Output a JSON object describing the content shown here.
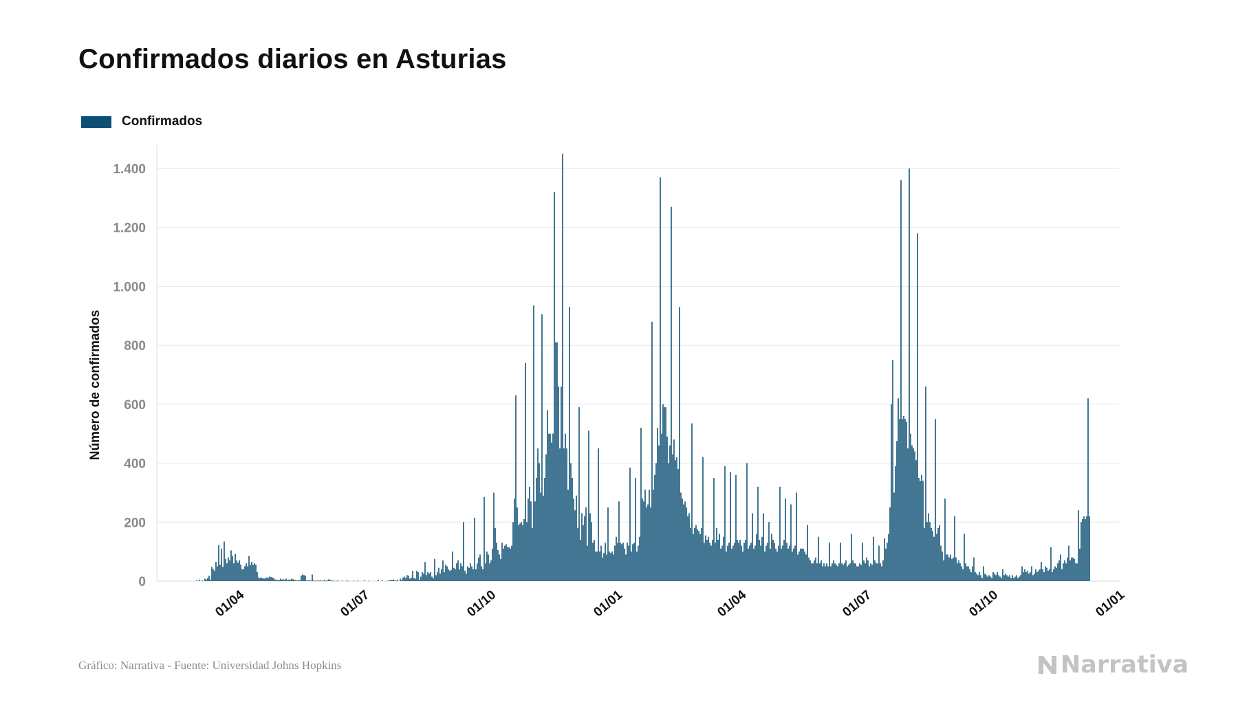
{
  "title": "Confirmados diarios en Asturias",
  "footer": {
    "source": "Gráfico: Narrativa - Fuente: Universidad Johns Hopkins",
    "logo_text": "Narrativa",
    "logo_icon": "narrativa-n-icon"
  },
  "colors": {
    "bar": "#0d5075",
    "grid": "#e6e6e6",
    "tick_y": "#8a8a8a",
    "text": "#111111"
  },
  "chart_data": {
    "type": "bar",
    "title": "Confirmados diarios en Asturias",
    "xlabel": "",
    "ylabel": "Número de confirmados",
    "legend": {
      "placement": "top-left",
      "entries": [
        "Confirmados"
      ]
    },
    "grid": true,
    "ylim": [
      0,
      1470
    ],
    "yticks": [
      0,
      200,
      400,
      600,
      800,
      1000,
      1200,
      1400
    ],
    "ytick_labels": [
      "0",
      "200",
      "400",
      "600",
      "800",
      "1.000",
      "1.200",
      "1.400"
    ],
    "xlim": [
      "2020-02-01",
      "2022-01-01"
    ],
    "xticks": [
      "2020-04-01",
      "2020-07-01",
      "2020-10-01",
      "2021-01-01",
      "2021-04-01",
      "2021-07-01",
      "2021-10-01",
      "2022-01-01"
    ],
    "xtick_labels": [
      "01/04",
      "01/07",
      "01/10",
      "01/01",
      "01/04",
      "01/07",
      "01/10",
      "01/01"
    ],
    "series": [
      {
        "name": "Confirmados",
        "color": "#0d5075",
        "start_date": "2020-03-01",
        "values": [
          2,
          0,
          4,
          0,
          2,
          0,
          8,
          5,
          10,
          18,
          5,
          48,
          40,
          35,
          65,
          50,
          122,
          55,
          110,
          48,
          134,
          75,
          60,
          80,
          70,
          104,
          85,
          60,
          92,
          70,
          62,
          70,
          56,
          40,
          40,
          50,
          60,
          50,
          85,
          55,
          65,
          55,
          60,
          55,
          30,
          12,
          10,
          12,
          10,
          8,
          10,
          12,
          10,
          15,
          14,
          12,
          10,
          5,
          4,
          3,
          4,
          8,
          5,
          6,
          4,
          8,
          3,
          5,
          4,
          8,
          6,
          4,
          3,
          2,
          2,
          3,
          18,
          22,
          20,
          18,
          2,
          2,
          3,
          1,
          22,
          2,
          1,
          1,
          2,
          1,
          2,
          1,
          1,
          4,
          1,
          2,
          6,
          3,
          2,
          1,
          1,
          0,
          1,
          1,
          0,
          0,
          1,
          0,
          0,
          1,
          1,
          0,
          0,
          0,
          1,
          0,
          0,
          1,
          0,
          0,
          0,
          0,
          2,
          0,
          0,
          1,
          0,
          0,
          0,
          0,
          0,
          0,
          4,
          0,
          0,
          2,
          0,
          0,
          0,
          1,
          2,
          4,
          3,
          5,
          2,
          1,
          4,
          0,
          8,
          3,
          12,
          15,
          10,
          20,
          18,
          8,
          12,
          35,
          10,
          8,
          35,
          30,
          5,
          15,
          30,
          25,
          65,
          20,
          30,
          25,
          30,
          15,
          10,
          75,
          20,
          30,
          45,
          25,
          40,
          70,
          30,
          55,
          50,
          40,
          35,
          38,
          100,
          45,
          40,
          60,
          70,
          40,
          60,
          50,
          200,
          35,
          25,
          50,
          45,
          60,
          50,
          40,
          215,
          40,
          60,
          80,
          90,
          50,
          40,
          285,
          60,
          100,
          90,
          60,
          70,
          110,
          300,
          180,
          130,
          105,
          90,
          75,
          130,
          110,
          120,
          125,
          115,
          115,
          110,
          120,
          200,
          280,
          630,
          250,
          190,
          195,
          200,
          190,
          210,
          740,
          200,
          280,
          320,
          270,
          180,
          935,
          270,
          350,
          450,
          400,
          300,
          905,
          290,
          350,
          430,
          580,
          500,
          500,
          470,
          500,
          1320,
          810,
          810,
          660,
          450,
          660,
          1450,
          450,
          500,
          450,
          310,
          930,
          400,
          350,
          280,
          240,
          290,
          180,
          590,
          140,
          230,
          190,
          220,
          250,
          120,
          510,
          230,
          200,
          130,
          140,
          100,
          100,
          450,
          100,
          120,
          80,
          95,
          130,
          90,
          250,
          100,
          95,
          100,
          90,
          120,
          150,
          130,
          270,
          130,
          125,
          130,
          110,
          90,
          130,
          120,
          385,
          100,
          125,
          130,
          350,
          100,
          120,
          150,
          520,
          280,
          270,
          310,
          250,
          260,
          310,
          250,
          880,
          310,
          360,
          400,
          520,
          460,
          1370,
          500,
          600,
          590,
          590,
          490,
          400,
          460,
          1270,
          430,
          480,
          410,
          420,
          380,
          930,
          300,
          280,
          260,
          270,
          250,
          220,
          230,
          180,
          535,
          160,
          180,
          190,
          175,
          170,
          160,
          180,
          420,
          130,
          155,
          140,
          150,
          130,
          120,
          140,
          350,
          130,
          180,
          140,
          160,
          110,
          120,
          150,
          390,
          100,
          120,
          130,
          370,
          110,
          120,
          130,
          360,
          140,
          130,
          140,
          120,
          100,
          130,
          140,
          400,
          110,
          120,
          130,
          230,
          110,
          120,
          160,
          320,
          140,
          120,
          150,
          230,
          100,
          120,
          130,
          200,
          110,
          160,
          140,
          130,
          110,
          100,
          120,
          320,
          110,
          120,
          140,
          280,
          130,
          110,
          120,
          260,
          100,
          110,
          120,
          300,
          90,
          100,
          110,
          110,
          110,
          100,
          90,
          190,
          80,
          70,
          60,
          60,
          70,
          80,
          60,
          150,
          60,
          70,
          50,
          60,
          50,
          60,
          50,
          130,
          50,
          60,
          70,
          60,
          55,
          50,
          60,
          130,
          60,
          55,
          60,
          70,
          50,
          55,
          60,
          160,
          70,
          60,
          60,
          50,
          50,
          60,
          55,
          130,
          70,
          60,
          80,
          70,
          50,
          60,
          55,
          150,
          70,
          60,
          60,
          120,
          60,
          50,
          70,
          145,
          110,
          130,
          160,
          250,
          600,
          750,
          300,
          390,
          475,
          620,
          550,
          1360,
          550,
          560,
          550,
          540,
          450,
          1400,
          500,
          460,
          450,
          440,
          410,
          1180,
          350,
          340,
          360,
          340,
          180,
          660,
          200,
          230,
          200,
          180,
          170,
          150,
          550,
          160,
          180,
          190,
          120,
          100,
          70,
          280,
          90,
          90,
          80,
          90,
          75,
          80,
          220,
          80,
          60,
          70,
          60,
          50,
          40,
          160,
          60,
          50,
          50,
          40,
          30,
          50,
          80,
          30,
          25,
          20,
          30,
          20,
          10,
          50,
          25,
          20,
          15,
          20,
          15,
          10,
          30,
          25,
          20,
          30,
          20,
          15,
          10,
          40,
          20,
          25,
          20,
          15,
          20,
          10,
          20,
          10,
          15,
          20,
          10,
          15,
          20,
          50,
          30,
          40,
          30,
          35,
          25,
          30,
          50,
          20,
          25,
          40,
          30,
          35,
          40,
          65,
          40,
          30,
          50,
          45,
          35,
          40,
          115,
          30,
          40,
          50,
          45,
          60,
          70,
          90,
          40,
          60,
          70,
          60,
          80,
          120,
          70,
          80,
          80,
          75,
          60,
          60,
          240,
          110,
          200,
          210,
          220,
          210,
          220,
          620,
          220
        ]
      }
    ]
  }
}
